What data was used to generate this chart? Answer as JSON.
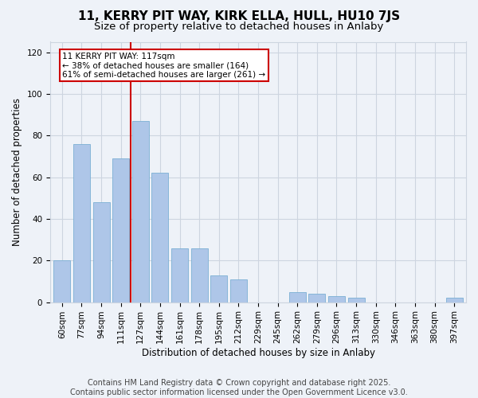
{
  "title": "11, KERRY PIT WAY, KIRK ELLA, HULL, HU10 7JS",
  "subtitle": "Size of property relative to detached houses in Anlaby",
  "xlabel": "Distribution of detached houses by size in Anlaby",
  "ylabel": "Number of detached properties",
  "bar_labels": [
    "60sqm",
    "77sqm",
    "94sqm",
    "111sqm",
    "127sqm",
    "144sqm",
    "161sqm",
    "178sqm",
    "195sqm",
    "212sqm",
    "229sqm",
    "245sqm",
    "262sqm",
    "279sqm",
    "296sqm",
    "313sqm",
    "330sqm",
    "346sqm",
    "363sqm",
    "380sqm",
    "397sqm"
  ],
  "bar_values": [
    20,
    76,
    48,
    69,
    87,
    62,
    26,
    26,
    13,
    11,
    0,
    0,
    5,
    4,
    3,
    2,
    0,
    0,
    0,
    0,
    2
  ],
  "bar_color": "#aec6e8",
  "bar_edgecolor": "#7bafd4",
  "vline_x": 3.5,
  "vline_color": "#cc0000",
  "annotation_title": "11 KERRY PIT WAY: 117sqm",
  "annotation_line1": "← 38% of detached houses are smaller (164)",
  "annotation_line2": "61% of semi-detached houses are larger (261) →",
  "annotation_box_color": "#cc0000",
  "annotation_bg": "#ffffff",
  "ylim": [
    0,
    125
  ],
  "yticks": [
    0,
    20,
    40,
    60,
    80,
    100,
    120
  ],
  "grid_color": "#cdd5e0",
  "bg_color": "#eef2f8",
  "footer": "Contains HM Land Registry data © Crown copyright and database right 2025.\nContains public sector information licensed under the Open Government Licence v3.0.",
  "title_fontsize": 11,
  "subtitle_fontsize": 9.5,
  "label_fontsize": 8.5,
  "tick_fontsize": 7.5,
  "footer_fontsize": 7
}
